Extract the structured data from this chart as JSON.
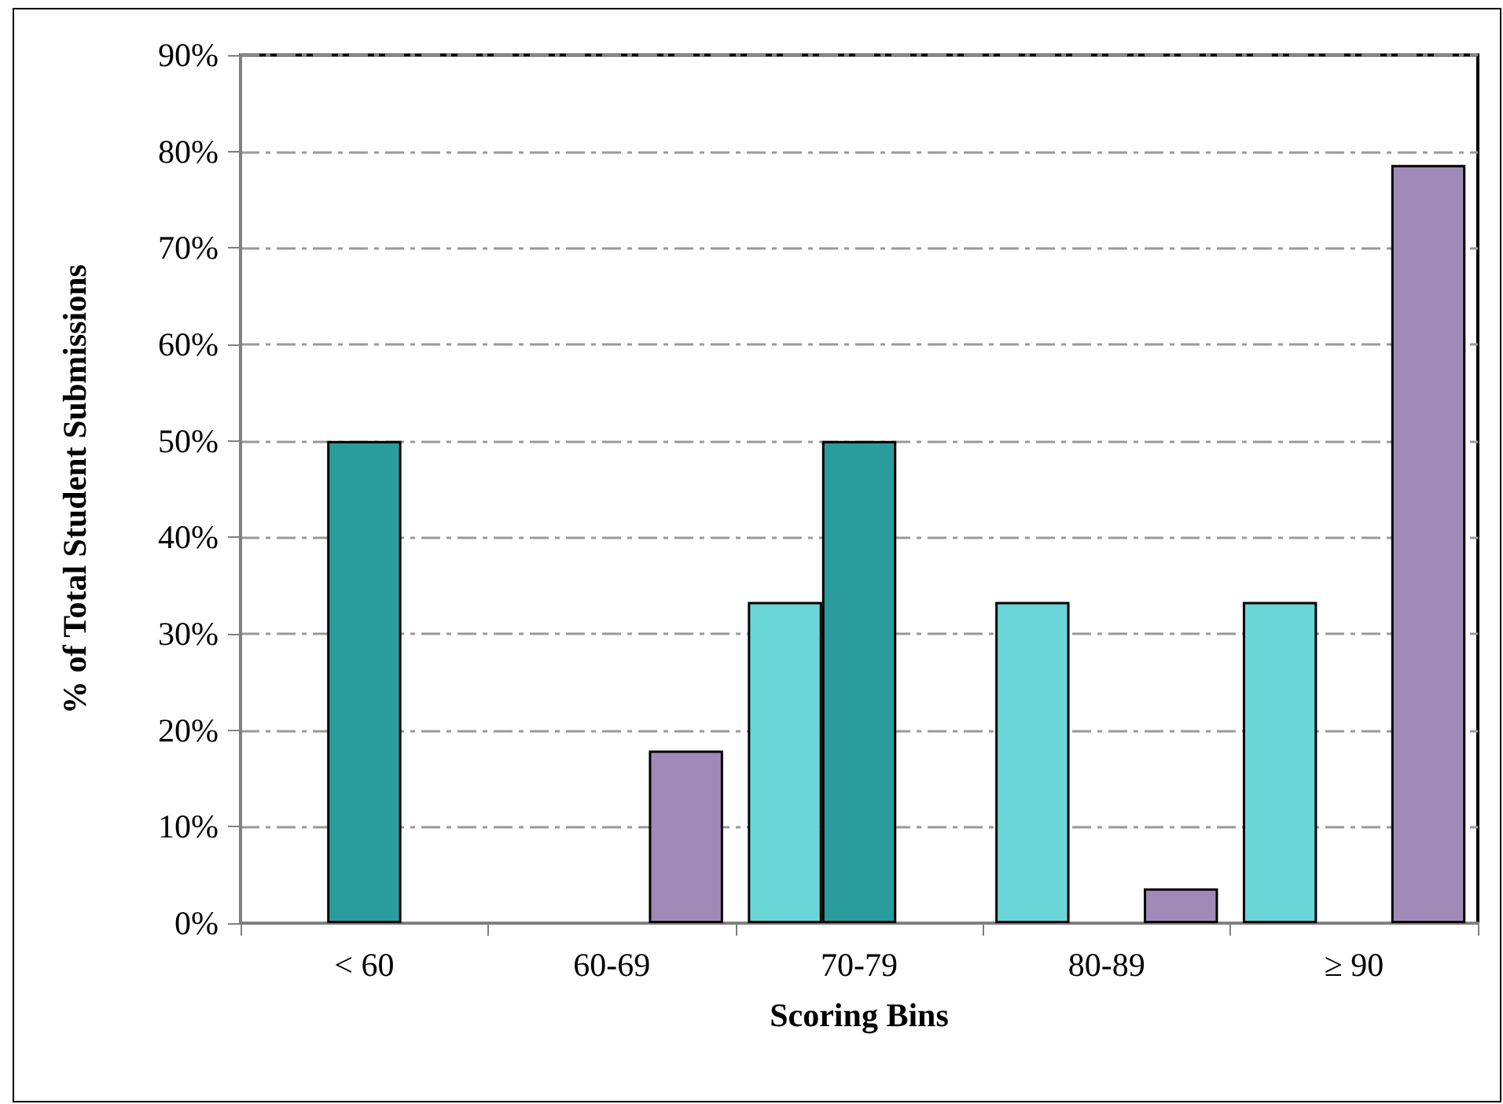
{
  "chart_data": {
    "type": "bar",
    "xlabel": "Scoring Bins",
    "ylabel": "% of Total Student Submissions",
    "categories": [
      "< 60",
      "60-69",
      "70-79",
      "80-89",
      "≥ 90"
    ],
    "series": [
      {
        "color": "#6ad6d8",
        "values": [
          null,
          null,
          33.3,
          33.3,
          33.3
        ]
      },
      {
        "color": "#2a9c9e",
        "values": [
          50,
          null,
          50,
          null,
          null
        ]
      },
      {
        "color": "#a08ab8",
        "values": [
          null,
          17.9,
          null,
          3.6,
          78.6
        ]
      }
    ],
    "ylim": [
      0,
      90
    ],
    "yticks": [
      {
        "value": 0,
        "label": "0%"
      },
      {
        "value": 10,
        "label": "10%"
      },
      {
        "value": 20,
        "label": "20%"
      },
      {
        "value": 30,
        "label": "30%"
      },
      {
        "value": 40,
        "label": "40%"
      },
      {
        "value": 50,
        "label": "50%"
      },
      {
        "value": 60,
        "label": "60%"
      },
      {
        "value": 70,
        "label": "70%"
      },
      {
        "value": 80,
        "label": "80%"
      },
      {
        "value": 90,
        "label": "90%"
      }
    ],
    "grid": "y"
  }
}
